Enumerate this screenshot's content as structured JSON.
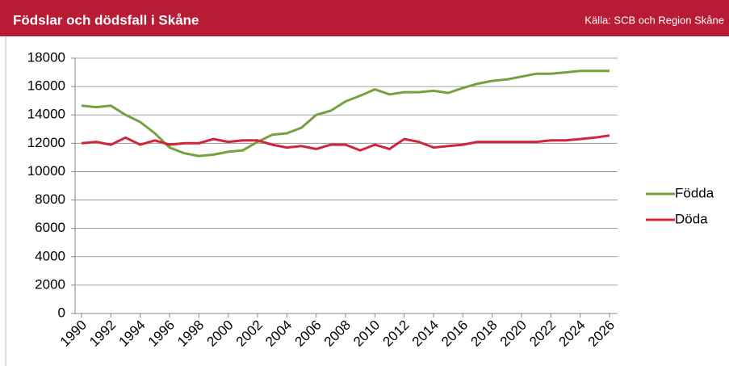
{
  "chart_data": {
    "type": "line",
    "title": "Födslar och dödsfall i Skåne",
    "source": "Källa: SCB och Region Skåne",
    "x": [
      1990,
      1991,
      1992,
      1993,
      1994,
      1995,
      1996,
      1997,
      1998,
      1999,
      2000,
      2001,
      2002,
      2003,
      2004,
      2005,
      2006,
      2007,
      2008,
      2009,
      2010,
      2011,
      2012,
      2013,
      2014,
      2015,
      2016,
      2017,
      2018,
      2019,
      2020,
      2021,
      2022,
      2023,
      2024,
      2025,
      2026
    ],
    "xlim": [
      1990,
      2026
    ],
    "xticks": [
      1990,
      1992,
      1994,
      1996,
      1998,
      2000,
      2002,
      2004,
      2006,
      2008,
      2010,
      2012,
      2014,
      2016,
      2018,
      2020,
      2022,
      2024,
      2026
    ],
    "ylim": [
      0,
      18000
    ],
    "yticks": [
      0,
      2000,
      4000,
      6000,
      8000,
      10000,
      12000,
      14000,
      16000,
      18000
    ],
    "grid": true,
    "legend": "right",
    "series": [
      {
        "name": "Födda",
        "color": "#77a03f",
        "values": [
          14650,
          14550,
          14650,
          14000,
          13500,
          12700,
          11700,
          11300,
          11100,
          11200,
          11400,
          11500,
          12100,
          12600,
          12700,
          13100,
          14000,
          14300,
          14950,
          15350,
          15800,
          15450,
          15600,
          15600,
          15700,
          15550,
          15900,
          16200,
          16400,
          16500,
          16700,
          16900,
          16900,
          17000,
          17100,
          17100,
          17100
        ]
      },
      {
        "name": "Döda",
        "color": "#d0253a",
        "values": [
          12000,
          12100,
          11900,
          12400,
          11900,
          12200,
          11900,
          12000,
          12000,
          12300,
          12100,
          12200,
          12200,
          11900,
          11700,
          11800,
          11600,
          11900,
          11900,
          11500,
          11900,
          11600,
          12300,
          12100,
          11700,
          11800,
          11900,
          12100,
          12100,
          12100,
          12100,
          12100,
          12200,
          12200,
          12300,
          12400,
          12550
        ]
      }
    ]
  }
}
